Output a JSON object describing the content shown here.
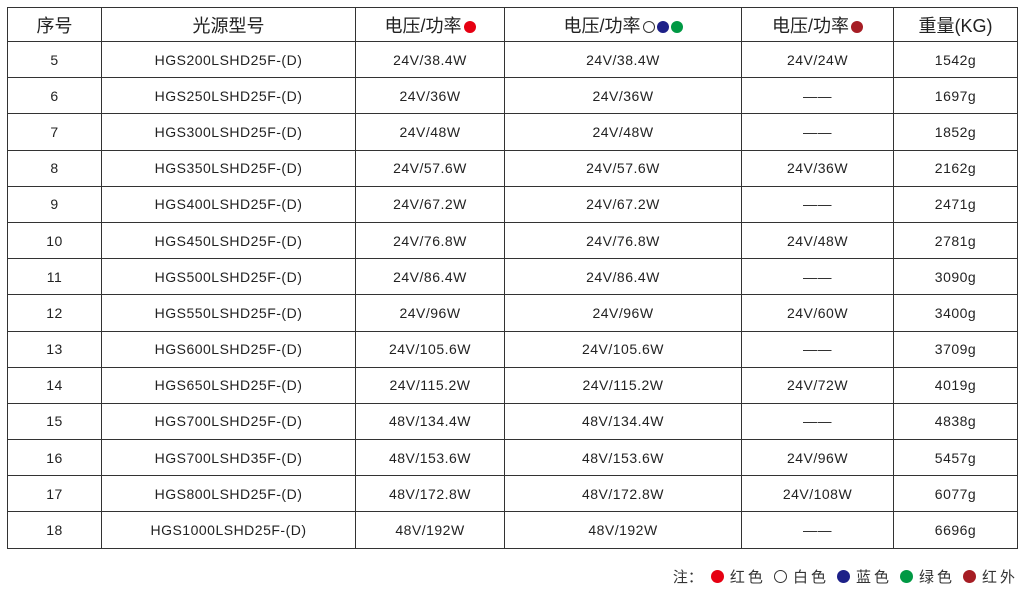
{
  "colors": {
    "red": "#e60012",
    "white": "#ffffff",
    "blue": "#1d2088",
    "green": "#009944",
    "infrared": "#a61d24"
  },
  "headers": [
    "序号",
    "光源型号",
    "电压/功率",
    "电压/功率",
    "电压/功率",
    "重量(KG)"
  ],
  "header_dots": [
    [],
    [],
    [
      "red"
    ],
    [
      "white",
      "blue",
      "green"
    ],
    [
      "infrared"
    ],
    []
  ],
  "rows": [
    [
      "5",
      "HGS200LSHD25F-(D)",
      "24V/38.4W",
      "24V/38.4W",
      "24V/24W",
      "1542g"
    ],
    [
      "6",
      "HGS250LSHD25F-(D)",
      "24V/36W",
      "24V/36W",
      "——",
      "1697g"
    ],
    [
      "7",
      "HGS300LSHD25F-(D)",
      "24V/48W",
      "24V/48W",
      "——",
      "1852g"
    ],
    [
      "8",
      "HGS350LSHD25F-(D)",
      "24V/57.6W",
      "24V/57.6W",
      "24V/36W",
      "2162g"
    ],
    [
      "9",
      "HGS400LSHD25F-(D)",
      "24V/67.2W",
      "24V/67.2W",
      "——",
      "2471g"
    ],
    [
      "10",
      "HGS450LSHD25F-(D)",
      "24V/76.8W",
      "24V/76.8W",
      "24V/48W",
      "2781g"
    ],
    [
      "11",
      "HGS500LSHD25F-(D)",
      "24V/86.4W",
      "24V/86.4W",
      "——",
      "3090g"
    ],
    [
      "12",
      "HGS550LSHD25F-(D)",
      "24V/96W",
      "24V/96W",
      "24V/60W",
      "3400g"
    ],
    [
      "13",
      "HGS600LSHD25F-(D)",
      "24V/105.6W",
      "24V/105.6W",
      "——",
      "3709g"
    ],
    [
      "14",
      "HGS650LSHD25F-(D)",
      "24V/115.2W",
      "24V/115.2W",
      "24V/72W",
      "4019g"
    ],
    [
      "15",
      "HGS700LSHD25F-(D)",
      "48V/134.4W",
      "48V/134.4W",
      "——",
      "4838g"
    ],
    [
      "16",
      "HGS700LSHD35F-(D)",
      "48V/153.6W",
      "48V/153.6W",
      "24V/96W",
      "5457g"
    ],
    [
      "17",
      "HGS800LSHD25F-(D)",
      "48V/172.8W",
      "48V/172.8W",
      "24V/108W",
      "6077g"
    ],
    [
      "18",
      "HGS1000LSHD25F-(D)",
      "48V/192W",
      "48V/192W",
      "——",
      "6696g"
    ]
  ],
  "legend": {
    "prefix": "注：",
    "items": [
      {
        "color": "red",
        "label": "红色"
      },
      {
        "color": "white",
        "label": "白色"
      },
      {
        "color": "blue",
        "label": "蓝色"
      },
      {
        "color": "green",
        "label": "绿色"
      },
      {
        "color": "infrared",
        "label": "红外"
      }
    ]
  }
}
